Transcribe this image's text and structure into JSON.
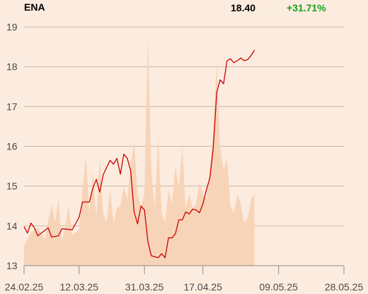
{
  "header": {
    "ticker": "ENA",
    "last_price": "18.40",
    "change": "+31.71%",
    "change_color": "#1aa01a"
  },
  "chart_data": {
    "type": "line",
    "title": "",
    "xlabel": "",
    "ylabel": "",
    "ylim": [
      13,
      19
    ],
    "yticks": [
      13,
      14,
      15,
      16,
      17,
      18,
      19
    ],
    "grid": true,
    "x_tick_labels": [
      "24.02.25",
      "12.03.25",
      "31.03.25",
      "17.04.25",
      "09.05.25",
      "28.05.25"
    ],
    "x_tick_dates": [
      "2025-02-24",
      "2025-03-12",
      "2025-03-31",
      "2025-04-17",
      "2025-05-09",
      "2025-05-28"
    ],
    "line_color": "#cc0000",
    "volume_color": "#f7d4b8",
    "series": [
      {
        "name": "",
        "kind": "price",
        "points": [
          [
            "2025-02-24",
            13.98
          ],
          [
            "2025-02-25",
            13.82
          ],
          [
            "2025-02-26",
            14.07
          ],
          [
            "2025-02-27",
            13.95
          ],
          [
            "2025-02-28",
            13.75
          ],
          [
            "2025-03-03",
            13.95
          ],
          [
            "2025-03-04",
            13.72
          ],
          [
            "2025-03-06",
            13.75
          ],
          [
            "2025-03-07",
            13.93
          ],
          [
            "2025-03-10",
            13.9
          ],
          [
            "2025-03-12",
            14.22
          ],
          [
            "2025-03-13",
            14.6
          ],
          [
            "2025-03-15",
            14.6
          ],
          [
            "2025-03-16",
            14.95
          ],
          [
            "2025-03-17",
            15.17
          ],
          [
            "2025-03-18",
            14.85
          ],
          [
            "2025-03-19",
            15.28
          ],
          [
            "2025-03-21",
            15.65
          ],
          [
            "2025-03-22",
            15.55
          ],
          [
            "2025-03-23",
            15.7
          ],
          [
            "2025-03-24",
            15.3
          ],
          [
            "2025-03-25",
            15.8
          ],
          [
            "2025-03-26",
            15.7
          ],
          [
            "2025-03-27",
            15.38
          ],
          [
            "2025-03-28",
            14.35
          ],
          [
            "2025-03-29",
            14.05
          ],
          [
            "2025-03-30",
            14.5
          ],
          [
            "2025-03-31",
            14.4
          ],
          [
            "2025-04-01",
            13.6
          ],
          [
            "2025-04-02",
            13.25
          ],
          [
            "2025-04-04",
            13.2
          ],
          [
            "2025-04-05",
            13.3
          ],
          [
            "2025-04-06",
            13.2
          ],
          [
            "2025-04-07",
            13.7
          ],
          [
            "2025-04-08",
            13.7
          ],
          [
            "2025-04-09",
            13.8
          ],
          [
            "2025-04-10",
            14.15
          ],
          [
            "2025-04-11",
            14.15
          ],
          [
            "2025-04-12",
            14.35
          ],
          [
            "2025-04-13",
            14.3
          ],
          [
            "2025-04-14",
            14.42
          ],
          [
            "2025-04-15",
            14.4
          ],
          [
            "2025-04-16",
            14.33
          ],
          [
            "2025-04-17",
            14.55
          ],
          [
            "2025-04-18",
            14.9
          ],
          [
            "2025-04-19",
            15.2
          ],
          [
            "2025-04-20",
            15.95
          ],
          [
            "2025-04-21",
            17.35
          ],
          [
            "2025-04-22",
            17.67
          ],
          [
            "2025-04-23",
            17.57
          ],
          [
            "2025-04-24",
            18.15
          ],
          [
            "2025-04-25",
            18.2
          ],
          [
            "2025-04-26",
            18.1
          ],
          [
            "2025-04-27",
            18.15
          ],
          [
            "2025-04-28",
            18.22
          ],
          [
            "2025-04-29",
            18.15
          ],
          [
            "2025-04-30",
            18.18
          ],
          [
            "2025-05-01",
            18.28
          ],
          [
            "2025-05-02",
            18.42
          ]
        ]
      },
      {
        "name": "",
        "kind": "volume",
        "note": "relative volume (0-1) drawn as shaded area",
        "points": [
          [
            "2025-02-24",
            0.08
          ],
          [
            "2025-02-26",
            0.14
          ],
          [
            "2025-02-28",
            0.16
          ],
          [
            "2025-03-02",
            0.11
          ],
          [
            "2025-03-04",
            0.26
          ],
          [
            "2025-03-05",
            0.18
          ],
          [
            "2025-03-06",
            0.28
          ],
          [
            "2025-03-07",
            0.1
          ],
          [
            "2025-03-09",
            0.25
          ],
          [
            "2025-03-10",
            0.13
          ],
          [
            "2025-03-12",
            0.15
          ],
          [
            "2025-03-13",
            0.32
          ],
          [
            "2025-03-14",
            0.46
          ],
          [
            "2025-03-15",
            0.22
          ],
          [
            "2025-03-16",
            0.4
          ],
          [
            "2025-03-17",
            0.2
          ],
          [
            "2025-03-18",
            0.45
          ],
          [
            "2025-03-19",
            0.22
          ],
          [
            "2025-03-20",
            0.18
          ],
          [
            "2025-03-21",
            0.32
          ],
          [
            "2025-03-22",
            0.18
          ],
          [
            "2025-03-23",
            0.24
          ],
          [
            "2025-03-24",
            0.25
          ],
          [
            "2025-03-25",
            0.33
          ],
          [
            "2025-03-26",
            0.28
          ],
          [
            "2025-03-27",
            0.42
          ],
          [
            "2025-03-28",
            0.52
          ],
          [
            "2025-03-29",
            0.3
          ],
          [
            "2025-03-30",
            0.25
          ],
          [
            "2025-03-31",
            0.3
          ],
          [
            "2025-04-01",
            0.97
          ],
          [
            "2025-04-02",
            0.4
          ],
          [
            "2025-04-03",
            0.24
          ],
          [
            "2025-04-04",
            0.54
          ],
          [
            "2025-04-05",
            0.22
          ],
          [
            "2025-04-06",
            0.18
          ],
          [
            "2025-04-07",
            0.32
          ],
          [
            "2025-04-08",
            0.26
          ],
          [
            "2025-04-09",
            0.42
          ],
          [
            "2025-04-10",
            0.32
          ],
          [
            "2025-04-11",
            0.5
          ],
          [
            "2025-04-12",
            0.24
          ],
          [
            "2025-04-13",
            0.3
          ],
          [
            "2025-04-14",
            0.24
          ],
          [
            "2025-04-15",
            0.26
          ],
          [
            "2025-04-16",
            0.35
          ],
          [
            "2025-04-17",
            0.3
          ],
          [
            "2025-04-18",
            0.28
          ],
          [
            "2025-04-19",
            0.4
          ],
          [
            "2025-04-20",
            0.55
          ],
          [
            "2025-04-21",
            0.85
          ],
          [
            "2025-04-22",
            0.5
          ],
          [
            "2025-04-23",
            0.4
          ],
          [
            "2025-04-24",
            0.45
          ],
          [
            "2025-04-25",
            0.25
          ],
          [
            "2025-04-26",
            0.22
          ],
          [
            "2025-04-27",
            0.3
          ],
          [
            "2025-04-28",
            0.26
          ],
          [
            "2025-04-29",
            0.18
          ],
          [
            "2025-04-30",
            0.2
          ],
          [
            "2025-05-01",
            0.28
          ],
          [
            "2025-05-02",
            0.3
          ]
        ]
      }
    ]
  }
}
